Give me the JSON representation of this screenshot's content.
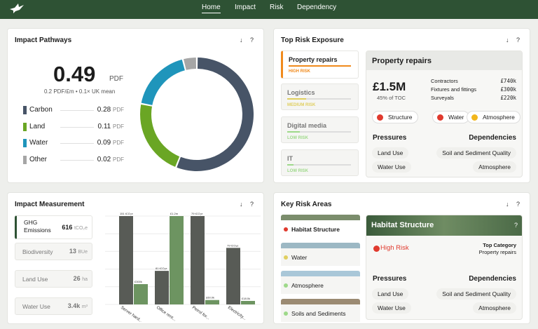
{
  "nav": {
    "items": [
      "Home",
      "Impact",
      "Risk",
      "Dependency"
    ],
    "active": "Home"
  },
  "impact_pathways": {
    "title": "Impact Pathways",
    "value": "0.49",
    "unit": "PDF",
    "subtext": "0.2 PDF/£m • 0.1× UK mean",
    "legend": [
      {
        "label": "Carbon",
        "value": "0.28",
        "unit": "PDF",
        "color": "#475467"
      },
      {
        "label": "Land",
        "value": "0.11",
        "unit": "PDF",
        "color": "#6aa624"
      },
      {
        "label": "Water",
        "value": "0.09",
        "unit": "PDF",
        "color": "#1f95bb"
      },
      {
        "label": "Other",
        "value": "0.02",
        "unit": "PDF",
        "color": "#a6a6a6"
      }
    ],
    "donut": [
      0.28,
      0.11,
      0.09,
      0.02
    ]
  },
  "top_risk": {
    "title": "Top Risk Exposure",
    "tabs": [
      {
        "name": "Property repairs",
        "level": "HIGH RISK",
        "color": "#f08a1c",
        "fill": 1.0
      },
      {
        "name": "Logistics",
        "level": "MEDIUM RISK",
        "color": "#e0cf60",
        "fill": 0.3
      },
      {
        "name": "Digital media",
        "level": "LOW RISK",
        "color": "#9ed98a",
        "fill": 0.2
      },
      {
        "name": "IT",
        "level": "LOW RISK",
        "color": "#9ed98a",
        "fill": 0.1
      }
    ],
    "detail": {
      "title": "Property repairs",
      "amount": "£1.5M",
      "pct": "45% of TOC",
      "breakdown": [
        {
          "label": "Contractors",
          "value": "£740k"
        },
        {
          "label": "Fixtures and fittings",
          "value": "£300k"
        },
        {
          "label": "Surveyals",
          "value": "£220k"
        }
      ],
      "tags": [
        {
          "label": "Structure",
          "color": "#e03a2e"
        },
        {
          "label": "Water",
          "color": "#e03a2e"
        },
        {
          "label": "Atmosphere",
          "color": "#f2b61c"
        }
      ],
      "pressures_label": "Pressures",
      "dependencies_label": "Dependencies",
      "pressures": [
        "Land Use",
        "Water Use"
      ],
      "dependencies": [
        "Soil and Sediment Quality",
        "Atmosphere"
      ]
    }
  },
  "measurement": {
    "title": "Impact Measurement",
    "items": [
      {
        "name": "GHG Emissions",
        "value": "616",
        "unit": "tCO₂e"
      },
      {
        "name": "Biodiversity",
        "value": "13",
        "unit": "BUe"
      },
      {
        "name": "Land Use",
        "value": "26",
        "unit": "ha"
      },
      {
        "name": "Water Use",
        "value": "3.4k",
        "unit": "m³"
      }
    ]
  },
  "chart_data": {
    "type": "bar",
    "categories": [
      "Server hard...",
      "Office rent...",
      "Petrol for...",
      "Electricity..."
    ],
    "series": [
      {
        "values": [
          1,
          0.38,
          1,
          0.64
        ],
        "color": "#585b56"
      },
      {
        "values": [
          0.23,
          1,
          0.05,
          0.04
        ],
        "color": "#6d9461"
      }
    ],
    "labels": [
      [
        "151 tCO₂e",
        "£300k"
      ],
      [
        "81 tCO₂e",
        "£1.2m"
      ],
      [
        "79 tCO₂e",
        "£60.0k"
      ],
      [
        "79 tCO₂e",
        "£18.0k"
      ]
    ]
  },
  "key_risk": {
    "title": "Key Risk Areas",
    "areas": [
      {
        "name": "Habitat Structure",
        "color": "#e03a2e",
        "strip": "#7b8d6c"
      },
      {
        "name": "Water",
        "color": "#e0cf60",
        "strip": "#9cb8c4"
      },
      {
        "name": "Atmosphere",
        "color": "#9ed98a",
        "strip": "#a9c7d8"
      },
      {
        "name": "Soils and Sediments",
        "color": "#9ed98a",
        "strip": "#9b8a72"
      }
    ],
    "detail": {
      "title": "Habitat Structure",
      "risk": "High Risk",
      "top_cat_label": "Top Category",
      "top_cat": "Property repairs",
      "pressures_label": "Pressures",
      "dependencies_label": "Dependencies",
      "pressures": [
        "Land Use",
        "Water Use"
      ],
      "dependencies": [
        "Soil and Sediment Quality",
        "Atmosphere"
      ],
      "help": "?"
    }
  },
  "ctrl": "↓ ?"
}
